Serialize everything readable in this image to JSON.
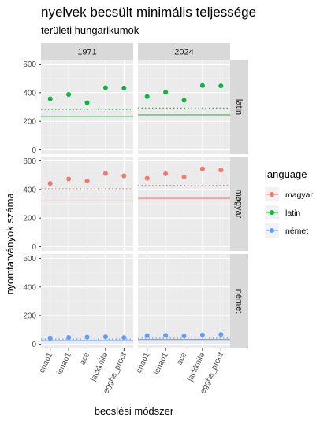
{
  "chart_data": {
    "type": "scatter",
    "title": "nyelvek becsült minimális teljessége",
    "subtitle": "területi hungarikumok",
    "xlabel": "becslési módszer",
    "ylabel": "nyomtatványok száma",
    "ylim": [
      -30,
      630
    ],
    "yticks": [
      0,
      200,
      400,
      600
    ],
    "categories": [
      "chao1",
      "ichao1",
      "ace",
      "jackknife",
      "egghe_proot"
    ],
    "col_facets": [
      "1971",
      "2024"
    ],
    "row_facets": [
      "latin",
      "magyar",
      "német"
    ],
    "legend": {
      "title": "language",
      "position": "right",
      "entries": [
        {
          "label": "magyar",
          "color": "#F8766D"
        },
        {
          "label": "latin",
          "color": "#00BA38"
        },
        {
          "label": "német",
          "color": "#619CFF"
        }
      ]
    },
    "panels": [
      {
        "row": "latin",
        "col": "1971",
        "color": "#00BA38",
        "values": [
          358,
          388,
          330,
          435,
          433
        ],
        "solid_ref": 235,
        "dotted_ref": 283
      },
      {
        "row": "latin",
        "col": "2024",
        "color": "#00BA38",
        "values": [
          373,
          403,
          347,
          450,
          448
        ],
        "solid_ref": 245,
        "dotted_ref": 293
      },
      {
        "row": "magyar",
        "col": "1971",
        "color": "#F8766D",
        "values": [
          442,
          473,
          460,
          511,
          495
        ],
        "solid_ref": 320,
        "dotted_ref": 405
      },
      {
        "row": "magyar",
        "col": "2024",
        "color": "#F8766D",
        "values": [
          478,
          510,
          488,
          544,
          535
        ],
        "solid_ref": 338,
        "dotted_ref": 428
      },
      {
        "row": "német",
        "col": "1971",
        "color": "#619CFF",
        "values": [
          43,
          47,
          50,
          52,
          46
        ],
        "solid_ref": 25,
        "dotted_ref": 35
      },
      {
        "row": "német",
        "col": "2024",
        "color": "#619CFF",
        "values": [
          60,
          62,
          58,
          65,
          68
        ],
        "solid_ref": 32,
        "dotted_ref": 42
      }
    ]
  }
}
